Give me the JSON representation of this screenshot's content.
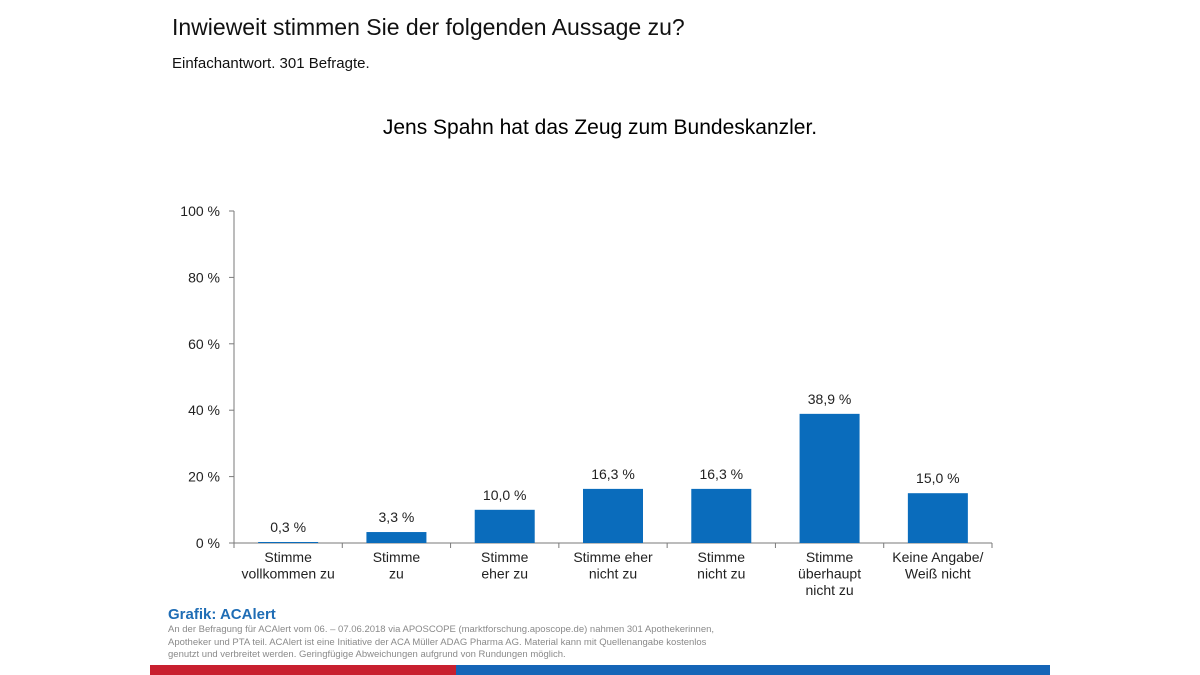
{
  "header": {
    "question": "Inwieweit stimmen Sie der folgenden Aussage zu?",
    "subtitle": "Einfachantwort. 301 Befragte."
  },
  "chart_data": {
    "type": "bar",
    "title": "Jens Spahn hat das Zeug zum Bundeskanzler.",
    "categories": [
      [
        "Stimme",
        "vollkommen zu"
      ],
      [
        "Stimme",
        "zu"
      ],
      [
        "Stimme",
        "eher zu"
      ],
      [
        "Stimme eher",
        "nicht zu"
      ],
      [
        "Stimme",
        "nicht zu"
      ],
      [
        "Stimme",
        "überhaupt",
        "nicht zu"
      ],
      [
        "Keine Angabe/",
        "Weiß nicht"
      ]
    ],
    "values": [
      0.3,
      3.3,
      10.0,
      16.3,
      16.3,
      38.9,
      15.0
    ],
    "value_labels": [
      "0,3 %",
      "3,3 %",
      "10,0 %",
      "16,3 %",
      "16,3 %",
      "38,9 %",
      "15,0 %"
    ],
    "yticks": [
      0,
      20,
      40,
      60,
      80,
      100
    ],
    "ytick_labels": [
      "0 %",
      "20 %",
      "40 %",
      "60 %",
      "80 %",
      "100 %"
    ],
    "ylim": [
      0,
      100
    ],
    "grid": false,
    "bar_color": "#0a6cbc"
  },
  "footer": {
    "brand": "Grafik: ACAlert",
    "source": "An der Befragung für ACAlert vom 06. – 07.06.2018 via APOSCOPE (marktforschung.aposcope.de) nahmen 301 Apothekerinnen, Apotheker und PTA teil. ACAlert ist eine Initiative der ACA Müller ADAG Pharma AG. Material kann mit Quellenangabe kostenlos genutzt und verbreitet werden. Geringfügige Abweichungen aufgrund von Rundungen möglich."
  },
  "colors": {
    "accent_red": "#c8202f",
    "accent_blue": "#1565b7",
    "brand_blue": "#1f6db5"
  }
}
